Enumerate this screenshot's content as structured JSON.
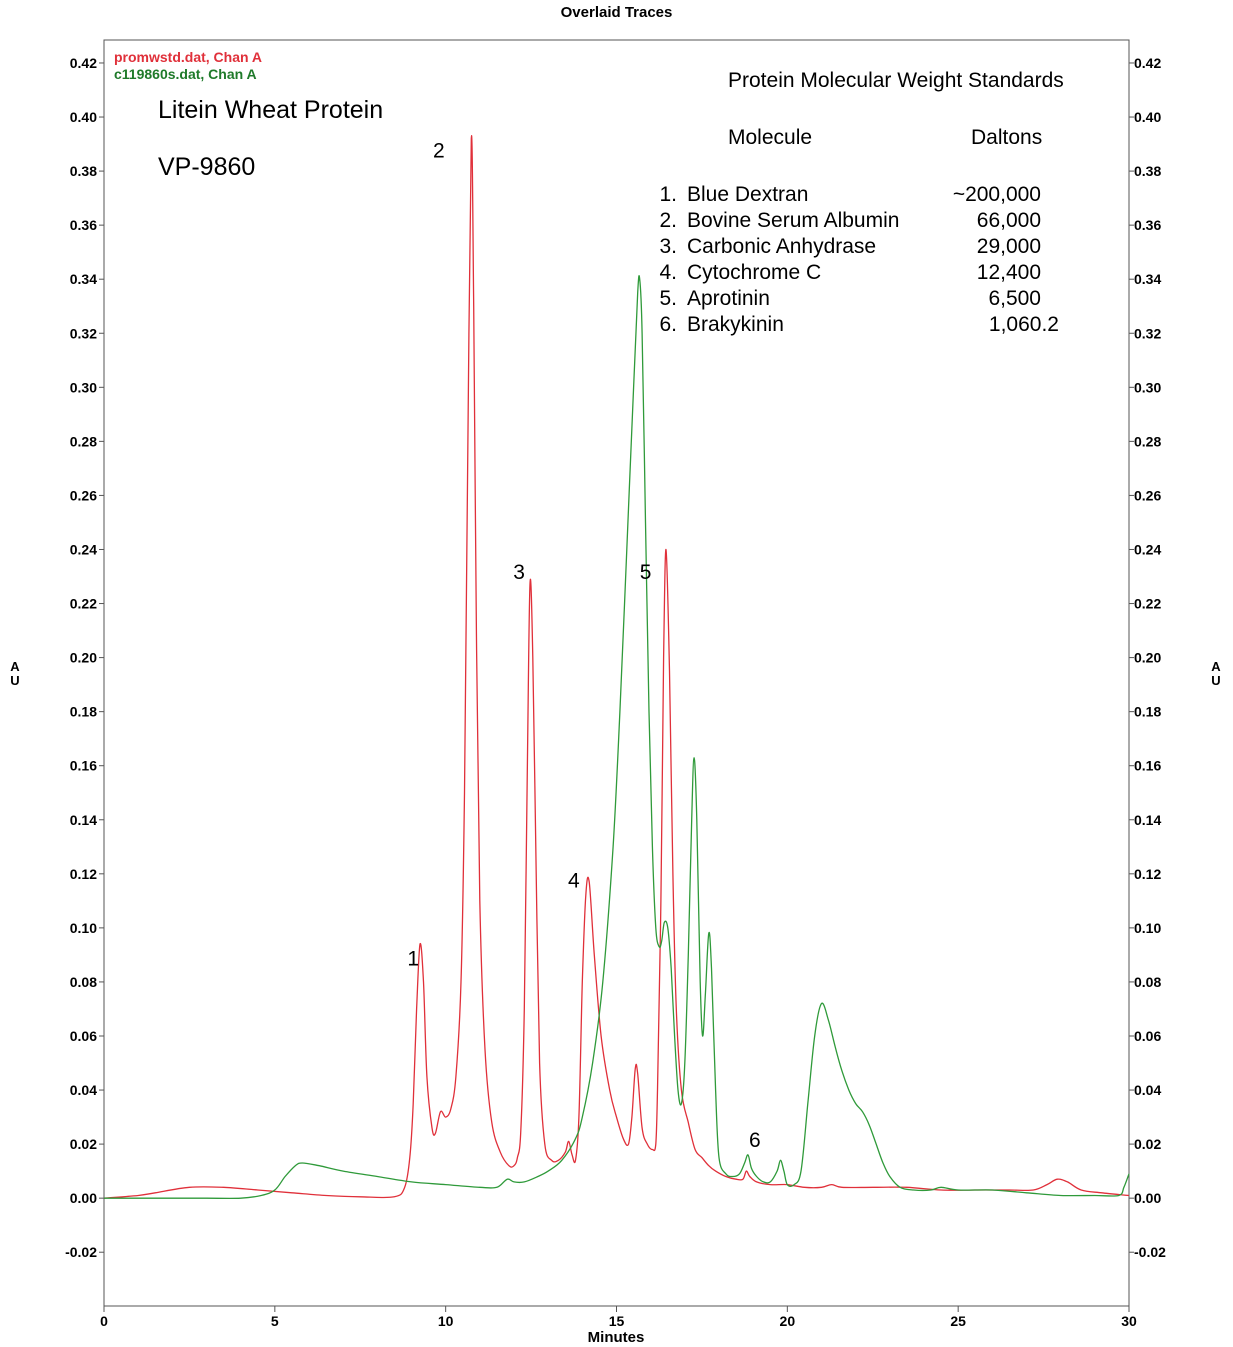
{
  "chart_data": {
    "type": "line",
    "title": "Overlaid Traces",
    "xlabel": "Minutes",
    "ylabel": "AU",
    "xlim": [
      0,
      30
    ],
    "ylim": [
      -0.04,
      0.43
    ],
    "x_ticks": [
      0,
      5,
      10,
      15,
      20,
      25,
      30
    ],
    "y_ticks": [
      -0.02,
      0.0,
      0.02,
      0.04,
      0.06,
      0.08,
      0.1,
      0.12,
      0.14,
      0.16,
      0.18,
      0.2,
      0.22,
      0.24,
      0.26,
      0.28,
      0.3,
      0.32,
      0.34,
      0.36,
      0.38,
      0.4,
      0.42
    ],
    "y_tick_labels": [
      "-0.02",
      "0.00",
      "0.02",
      "0.04",
      "0.06",
      "0.08",
      "0.10",
      "0.12",
      "0.14",
      "0.16",
      "0.18",
      "0.20",
      "0.22",
      "0.24",
      "0.26",
      "0.28",
      "0.30",
      "0.32",
      "0.34",
      "0.36",
      "0.38",
      "0.40",
      "0.42"
    ],
    "grid": false,
    "legend_position": "top-left",
    "series": [
      {
        "name": "promwstd.dat, Chan A",
        "color": "#e0303a",
        "points": [
          [
            0,
            0.0
          ],
          [
            1,
            0.001
          ],
          [
            1.5,
            0.002
          ],
          [
            2.5,
            0.004
          ],
          [
            3.5,
            0.004
          ],
          [
            4.5,
            0.003
          ],
          [
            5.5,
            0.002
          ],
          [
            6.5,
            0.001
          ],
          [
            7.5,
            0.0005
          ],
          [
            8.5,
            0.0005
          ],
          [
            8.8,
            0.004
          ],
          [
            8.95,
            0.015
          ],
          [
            9.05,
            0.035
          ],
          [
            9.15,
            0.07
          ],
          [
            9.25,
            0.094
          ],
          [
            9.35,
            0.08
          ],
          [
            9.45,
            0.045
          ],
          [
            9.6,
            0.026
          ],
          [
            9.7,
            0.024
          ],
          [
            9.85,
            0.032
          ],
          [
            10.0,
            0.03
          ],
          [
            10.15,
            0.033
          ],
          [
            10.3,
            0.045
          ],
          [
            10.45,
            0.08
          ],
          [
            10.55,
            0.15
          ],
          [
            10.65,
            0.28
          ],
          [
            10.75,
            0.392
          ],
          [
            10.82,
            0.33
          ],
          [
            10.9,
            0.21
          ],
          [
            11.0,
            0.11
          ],
          [
            11.15,
            0.055
          ],
          [
            11.35,
            0.028
          ],
          [
            11.6,
            0.017
          ],
          [
            11.85,
            0.012
          ],
          [
            12.0,
            0.012
          ],
          [
            12.1,
            0.015
          ],
          [
            12.2,
            0.025
          ],
          [
            12.3,
            0.07
          ],
          [
            12.4,
            0.17
          ],
          [
            12.47,
            0.228
          ],
          [
            12.55,
            0.2
          ],
          [
            12.65,
            0.12
          ],
          [
            12.75,
            0.05
          ],
          [
            12.9,
            0.02
          ],
          [
            13.1,
            0.014
          ],
          [
            13.3,
            0.014
          ],
          [
            13.5,
            0.017
          ],
          [
            13.6,
            0.021
          ],
          [
            13.7,
            0.016
          ],
          [
            13.8,
            0.014
          ],
          [
            13.9,
            0.03
          ],
          [
            14.0,
            0.08
          ],
          [
            14.1,
            0.112
          ],
          [
            14.2,
            0.117
          ],
          [
            14.35,
            0.09
          ],
          [
            14.55,
            0.06
          ],
          [
            14.8,
            0.04
          ],
          [
            15.0,
            0.03
          ],
          [
            15.2,
            0.022
          ],
          [
            15.35,
            0.02
          ],
          [
            15.45,
            0.03
          ],
          [
            15.55,
            0.048
          ],
          [
            15.62,
            0.046
          ],
          [
            15.75,
            0.026
          ],
          [
            15.9,
            0.02
          ],
          [
            16.05,
            0.018
          ],
          [
            16.15,
            0.02
          ],
          [
            16.2,
            0.04
          ],
          [
            16.3,
            0.11
          ],
          [
            16.38,
            0.2
          ],
          [
            16.45,
            0.24
          ],
          [
            16.55,
            0.195
          ],
          [
            16.65,
            0.12
          ],
          [
            16.75,
            0.07
          ],
          [
            16.9,
            0.04
          ],
          [
            17.1,
            0.028
          ],
          [
            17.3,
            0.018
          ],
          [
            17.5,
            0.015
          ],
          [
            17.7,
            0.012
          ],
          [
            17.9,
            0.01
          ],
          [
            18.2,
            0.008
          ],
          [
            18.5,
            0.007
          ],
          [
            18.7,
            0.007
          ],
          [
            18.8,
            0.01
          ],
          [
            18.9,
            0.008
          ],
          [
            19.1,
            0.006
          ],
          [
            19.5,
            0.005
          ],
          [
            20.0,
            0.005
          ],
          [
            20.5,
            0.004
          ],
          [
            21.0,
            0.004
          ],
          [
            21.3,
            0.005
          ],
          [
            21.6,
            0.004
          ],
          [
            22.5,
            0.004
          ],
          [
            23.5,
            0.004
          ],
          [
            24.5,
            0.003
          ],
          [
            25.5,
            0.003
          ],
          [
            26.5,
            0.003
          ],
          [
            27.2,
            0.003
          ],
          [
            27.6,
            0.005
          ],
          [
            27.9,
            0.007
          ],
          [
            28.2,
            0.006
          ],
          [
            28.6,
            0.003
          ],
          [
            29.2,
            0.002
          ],
          [
            30.0,
            0.001
          ]
        ]
      },
      {
        "name": "c119860s.dat, Chan A",
        "color": "#2f9a3a",
        "points": [
          [
            0,
            0.0
          ],
          [
            1.0,
            0.0
          ],
          [
            2.0,
            0.0
          ],
          [
            3.0,
            0.0
          ],
          [
            4.0,
            0.0
          ],
          [
            4.6,
            0.001
          ],
          [
            5.0,
            0.003
          ],
          [
            5.3,
            0.008
          ],
          [
            5.6,
            0.012
          ],
          [
            5.8,
            0.013
          ],
          [
            6.3,
            0.012
          ],
          [
            7.0,
            0.01
          ],
          [
            8.0,
            0.008
          ],
          [
            9.0,
            0.006
          ],
          [
            10.0,
            0.005
          ],
          [
            11.0,
            0.004
          ],
          [
            11.5,
            0.004
          ],
          [
            11.8,
            0.007
          ],
          [
            12.0,
            0.006
          ],
          [
            12.3,
            0.006
          ],
          [
            12.7,
            0.008
          ],
          [
            13.0,
            0.01
          ],
          [
            13.4,
            0.014
          ],
          [
            13.8,
            0.022
          ],
          [
            14.0,
            0.03
          ],
          [
            14.3,
            0.05
          ],
          [
            14.6,
            0.08
          ],
          [
            14.9,
            0.13
          ],
          [
            15.1,
            0.18
          ],
          [
            15.3,
            0.24
          ],
          [
            15.5,
            0.3
          ],
          [
            15.62,
            0.335
          ],
          [
            15.68,
            0.34
          ],
          [
            15.75,
            0.32
          ],
          [
            15.85,
            0.25
          ],
          [
            15.95,
            0.18
          ],
          [
            16.05,
            0.13
          ],
          [
            16.15,
            0.1
          ],
          [
            16.25,
            0.093
          ],
          [
            16.32,
            0.095
          ],
          [
            16.4,
            0.102
          ],
          [
            16.5,
            0.1
          ],
          [
            16.6,
            0.085
          ],
          [
            16.7,
            0.06
          ],
          [
            16.8,
            0.04
          ],
          [
            16.9,
            0.035
          ],
          [
            17.0,
            0.05
          ],
          [
            17.1,
            0.09
          ],
          [
            17.2,
            0.14
          ],
          [
            17.27,
            0.163
          ],
          [
            17.35,
            0.14
          ],
          [
            17.45,
            0.08
          ],
          [
            17.52,
            0.06
          ],
          [
            17.6,
            0.075
          ],
          [
            17.7,
            0.098
          ],
          [
            17.78,
            0.085
          ],
          [
            17.9,
            0.04
          ],
          [
            18.0,
            0.015
          ],
          [
            18.2,
            0.009
          ],
          [
            18.4,
            0.008
          ],
          [
            18.6,
            0.009
          ],
          [
            18.75,
            0.013
          ],
          [
            18.85,
            0.016
          ],
          [
            18.95,
            0.011
          ],
          [
            19.1,
            0.008
          ],
          [
            19.3,
            0.006
          ],
          [
            19.5,
            0.006
          ],
          [
            19.7,
            0.01
          ],
          [
            19.8,
            0.014
          ],
          [
            19.9,
            0.01
          ],
          [
            20.0,
            0.005
          ],
          [
            20.2,
            0.005
          ],
          [
            20.4,
            0.01
          ],
          [
            20.6,
            0.035
          ],
          [
            20.8,
            0.06
          ],
          [
            21.0,
            0.072
          ],
          [
            21.2,
            0.066
          ],
          [
            21.4,
            0.056
          ],
          [
            21.6,
            0.047
          ],
          [
            21.8,
            0.04
          ],
          [
            22.0,
            0.035
          ],
          [
            22.2,
            0.032
          ],
          [
            22.4,
            0.027
          ],
          [
            22.6,
            0.02
          ],
          [
            22.8,
            0.013
          ],
          [
            23.0,
            0.008
          ],
          [
            23.3,
            0.004
          ],
          [
            23.7,
            0.003
          ],
          [
            24.2,
            0.003
          ],
          [
            24.5,
            0.004
          ],
          [
            25.0,
            0.003
          ],
          [
            26.0,
            0.003
          ],
          [
            27.0,
            0.002
          ],
          [
            28.0,
            0.001
          ],
          [
            29.0,
            0.001
          ],
          [
            29.7,
            0.001
          ],
          [
            29.85,
            0.004
          ],
          [
            30.0,
            0.009
          ]
        ]
      }
    ],
    "peak_labels": [
      {
        "label": "1",
        "x": 9.05,
        "y": 0.086
      },
      {
        "label": "2",
        "x": 9.8,
        "y": 0.385
      },
      {
        "label": "3",
        "x": 12.15,
        "y": 0.229
      },
      {
        "label": "4",
        "x": 13.75,
        "y": 0.115
      },
      {
        "label": "5",
        "x": 15.85,
        "y": 0.229
      },
      {
        "label": "6",
        "x": 19.05,
        "y": 0.019
      }
    ],
    "annotations": {
      "sample_name": "Litein Wheat Protein",
      "sample_id": "VP-9860",
      "standards_title": "Protein Molecular Weight Standards",
      "col_molecule": "Molecule",
      "col_daltons": "Daltons",
      "standards": [
        {
          "num": "1.",
          "molecule": "Blue Dextran",
          "daltons": "~200,000"
        },
        {
          "num": "2.",
          "molecule": "Bovine Serum Albumin",
          "daltons": "66,000"
        },
        {
          "num": "3.",
          "molecule": "Carbonic Anhydrase",
          "daltons": "29,000"
        },
        {
          "num": "4.",
          "molecule": "Cytochrome C",
          "daltons": "12,400"
        },
        {
          "num": "5.",
          "molecule": "Aprotinin",
          "daltons": "6,500"
        },
        {
          "num": "6.",
          "molecule": "Brakykinin",
          "daltons": "1,060.2"
        }
      ]
    }
  }
}
